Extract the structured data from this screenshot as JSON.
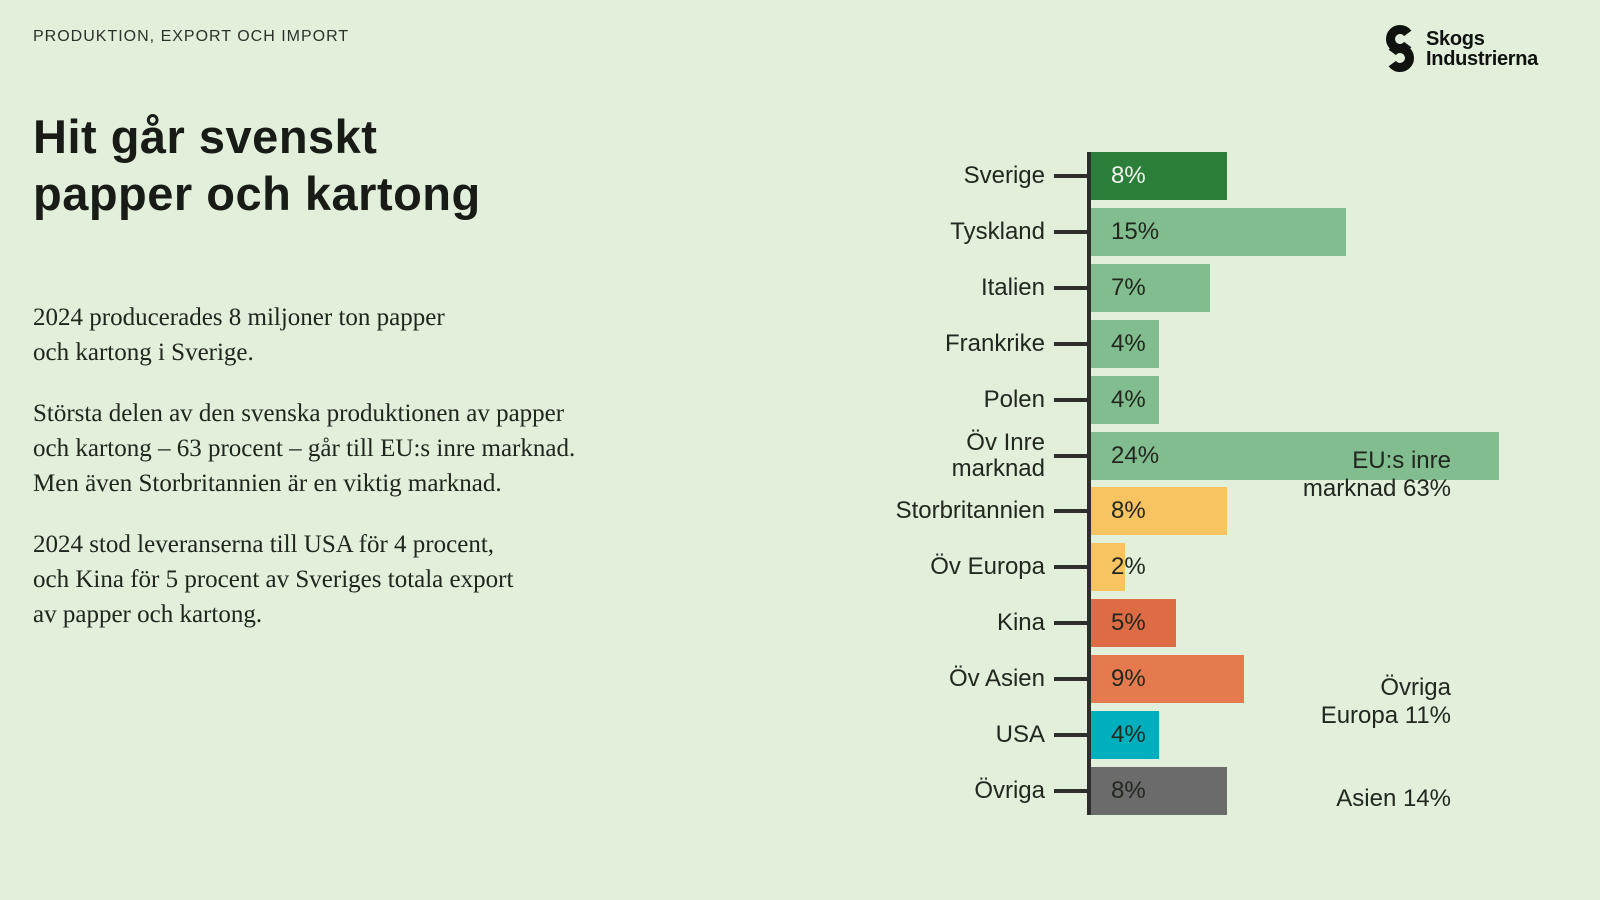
{
  "slide": {
    "eyebrow": "PRODUKTION, EXPORT OCH IMPORT",
    "title": "Hit går svenskt\npapper och kartong",
    "paragraphs": [
      "2024 producerades 8 miljoner ton papper\noch kartong i Sverige.",
      "Största delen av den svenska produktionen av papper\noch kartong – 63 procent – går till EU:s inre marknad.\nMen även Storbritannien är en viktig marknad.",
      "2024 stod leveranserna till USA för 4 procent,\noch Kina för 5 procent av Sveriges totala export\nav papper och kartong."
    ],
    "logo": {
      "line1": "Skogs",
      "line2": "Industrierna"
    }
  },
  "colors": {
    "background": "#e1efdb",
    "dark_green": "#2c7f3b",
    "medium_green": "#82bd8f",
    "amber": "#f8c462",
    "orange_dark": "#dd6b44",
    "orange": "#e47a4e",
    "teal": "#00afbd",
    "gray": "#6b6b6b",
    "ink": "#22271f"
  },
  "chart_data": {
    "type": "bar",
    "orientation": "horizontal",
    "unit": "percent of Swedish paper and board exports",
    "xlim": [
      0,
      25
    ],
    "grid": false,
    "legend": "none",
    "categories": [
      "Sverige",
      "Tyskland",
      "Italien",
      "Frankrike",
      "Polen",
      "Öv Inre marknad",
      "Storbritannien",
      "Öv Europa",
      "Kina",
      "Öv Asien",
      "USA",
      "Övriga"
    ],
    "values": [
      8,
      15,
      7,
      4,
      4,
      24,
      8,
      2,
      5,
      9,
      4,
      8
    ],
    "rows": [
      {
        "label": "Sverige",
        "value": 8,
        "display": "8%",
        "color": "#2c7f3b",
        "value_color": "#f1f6ee"
      },
      {
        "label": "Tyskland",
        "value": 15,
        "display": "15%",
        "color": "#82bd8f",
        "value_color": "#22271f"
      },
      {
        "label": "Italien",
        "value": 7,
        "display": "7%",
        "color": "#82bd8f",
        "value_color": "#22271f"
      },
      {
        "label": "Frankrike",
        "value": 4,
        "display": "4%",
        "color": "#82bd8f",
        "value_color": "#22271f"
      },
      {
        "label": "Polen",
        "value": 4,
        "display": "4%",
        "color": "#82bd8f",
        "value_color": "#22271f"
      },
      {
        "label": "Öv Inre\nmarknad",
        "value": 24,
        "display": "24%",
        "color": "#82bd8f",
        "value_color": "#22271f"
      },
      {
        "label": "Storbritannien",
        "value": 8,
        "display": "8%",
        "color": "#f8c462",
        "value_color": "#22271f"
      },
      {
        "label": "Öv Europa",
        "value": 2,
        "display": "2%",
        "color": "#f8c462",
        "value_color": "#22271f"
      },
      {
        "label": "Kina",
        "value": 5,
        "display": "5%",
        "color": "#dd6b44",
        "value_color": "#22271f"
      },
      {
        "label": "Öv Asien",
        "value": 9,
        "display": "9%",
        "color": "#e47a4e",
        "value_color": "#22271f"
      },
      {
        "label": "USA",
        "value": 4,
        "display": "4%",
        "color": "#00afbd",
        "value_color": "#22271f"
      },
      {
        "label": "Övriga",
        "value": 8,
        "display": "8%",
        "color": "#6b6b6b",
        "value_color": "#22271f"
      }
    ],
    "annotations": [
      {
        "text": "EU:s inre\nmarknad 63%"
      },
      {
        "text": "Övriga\nEuropa 11%"
      },
      {
        "text": "Asien 14%"
      }
    ]
  }
}
